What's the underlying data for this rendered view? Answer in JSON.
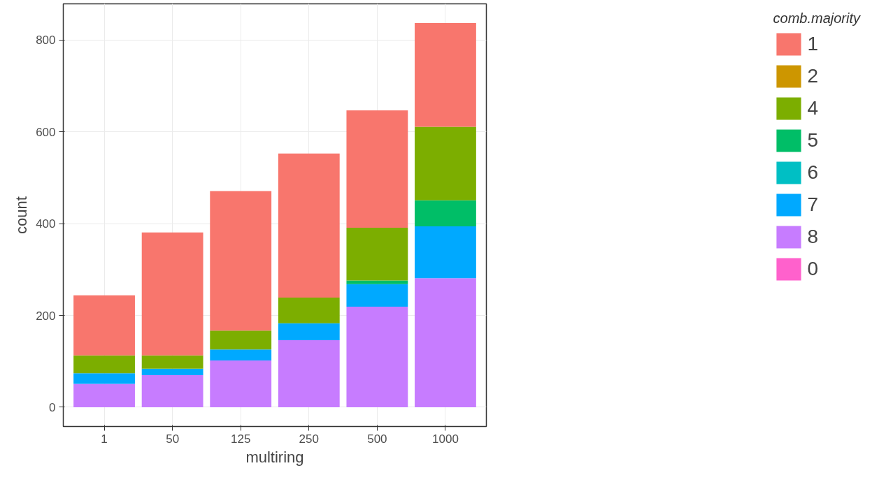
{
  "chart_data": {
    "type": "bar",
    "stacked": true,
    "xlabel": "multiring",
    "ylabel": "count",
    "legend_title": "comb.majority",
    "categories": [
      "1",
      "50",
      "125",
      "250",
      "500",
      "1000"
    ],
    "ylim": [
      -42,
      879
    ],
    "yticks": [
      0,
      200,
      400,
      600,
      800
    ],
    "grid": true,
    "legend": "right",
    "series": [
      {
        "name": "0",
        "color": "#ff61cc",
        "values": [
          0,
          0,
          0,
          0,
          0,
          0
        ]
      },
      {
        "name": "8",
        "color": "#c77cff",
        "values": [
          51,
          70,
          102,
          146,
          219,
          281
        ]
      },
      {
        "name": "7",
        "color": "#00a9ff",
        "values": [
          23,
          14,
          24,
          37,
          49,
          113
        ]
      },
      {
        "name": "6",
        "color": "#00bfc4",
        "values": [
          0,
          0,
          0,
          0,
          0,
          0
        ]
      },
      {
        "name": "5",
        "color": "#00be67",
        "values": [
          0,
          0,
          0,
          0,
          8,
          57
        ]
      },
      {
        "name": "4",
        "color": "#7cae00",
        "values": [
          39,
          29,
          41,
          56,
          115,
          160
        ]
      },
      {
        "name": "2",
        "color": "#cd9600",
        "values": [
          0,
          0,
          0,
          0,
          0,
          0
        ]
      },
      {
        "name": "1",
        "color": "#f8766d",
        "values": [
          131,
          268,
          304,
          314,
          256,
          226
        ]
      }
    ]
  }
}
